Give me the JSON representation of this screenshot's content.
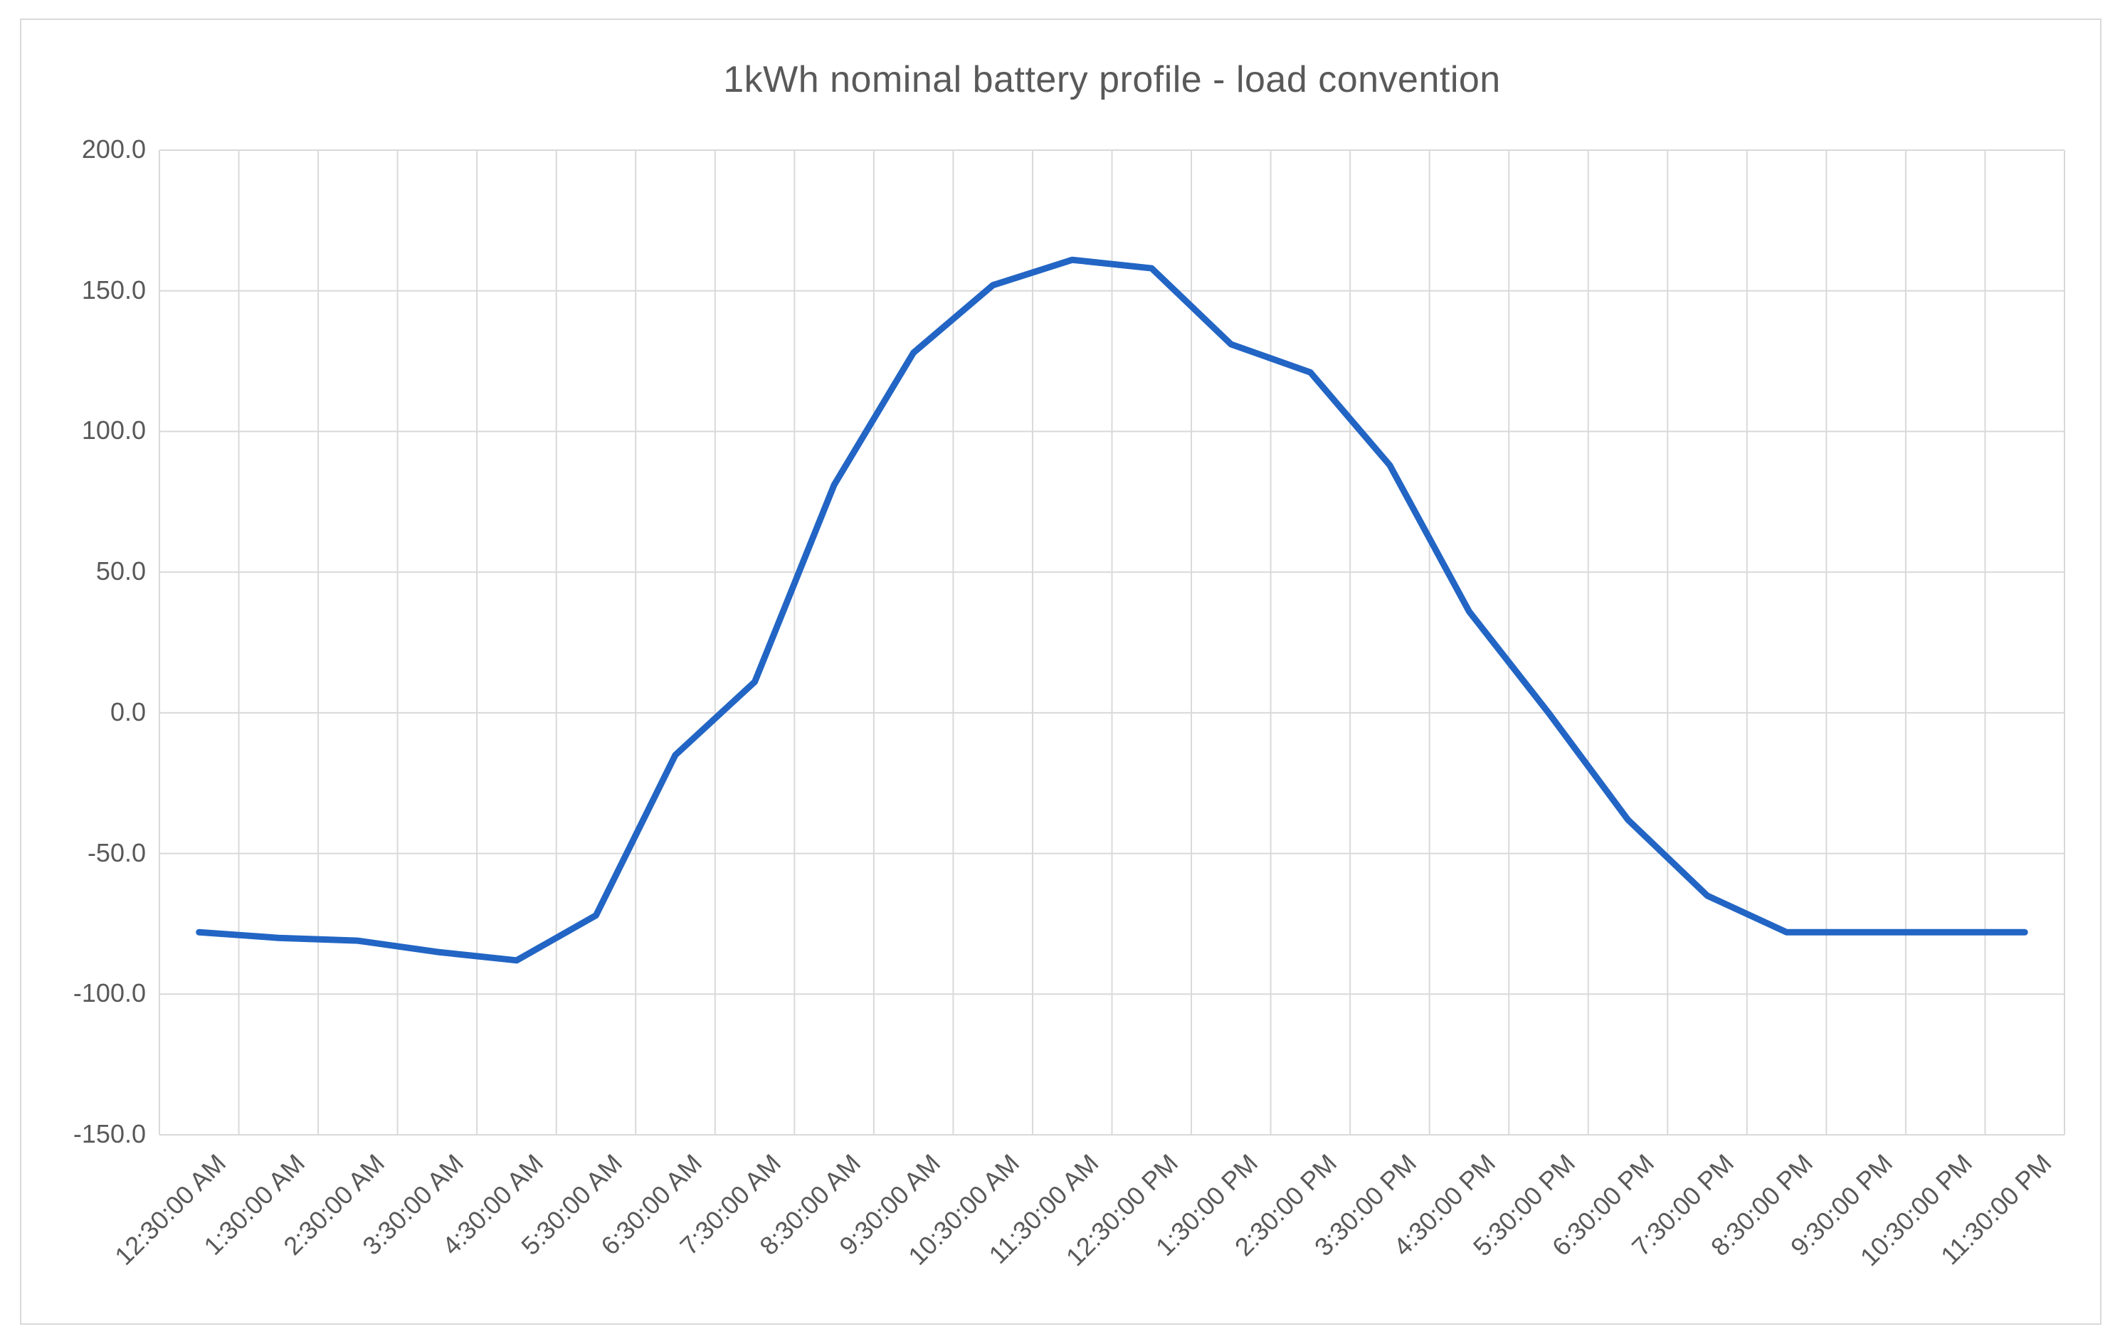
{
  "chart": {
    "title": "1kWh nominal battery profile - load convention"
  },
  "colors": {
    "series_line": "#2265C4",
    "gridline": "#D9D9D9",
    "frame_border": "#D9D9D9",
    "text": "#595959",
    "background": "#FFFFFF"
  },
  "chart_data": {
    "type": "line",
    "title": "1kWh nominal battery profile - load convention",
    "xlabel": "",
    "ylabel": "",
    "ylim": [
      -150,
      200
    ],
    "ytick_step": 50,
    "y_tick_labels": [
      "200.0",
      "150.0",
      "100.0",
      "50.0",
      "0.0",
      "-50.0",
      "-100.0",
      "-150.0"
    ],
    "grid": true,
    "legend": false,
    "categories": [
      "12:30:00 AM",
      "1:30:00 AM",
      "2:30:00 AM",
      "3:30:00 AM",
      "4:30:00 AM",
      "5:30:00 AM",
      "6:30:00 AM",
      "7:30:00 AM",
      "8:30:00 AM",
      "9:30:00 AM",
      "10:30:00 AM",
      "11:30:00 AM",
      "12:30:00 PM",
      "1:30:00 PM",
      "2:30:00 PM",
      "3:30:00 PM",
      "4:30:00 PM",
      "5:30:00 PM",
      "6:30:00 PM",
      "7:30:00 PM",
      "8:30:00 PM",
      "9:30:00 PM",
      "10:30:00 PM",
      "11:30:00 PM"
    ],
    "series": [
      {
        "name": "1kWh nominal battery profile",
        "values": [
          -78,
          -80,
          -81,
          -85,
          -88,
          -72,
          -15,
          11,
          81,
          128,
          152,
          161,
          158,
          131,
          121,
          88,
          36,
          0,
          -38,
          -65,
          -78,
          -78,
          -78,
          -78
        ]
      }
    ]
  }
}
